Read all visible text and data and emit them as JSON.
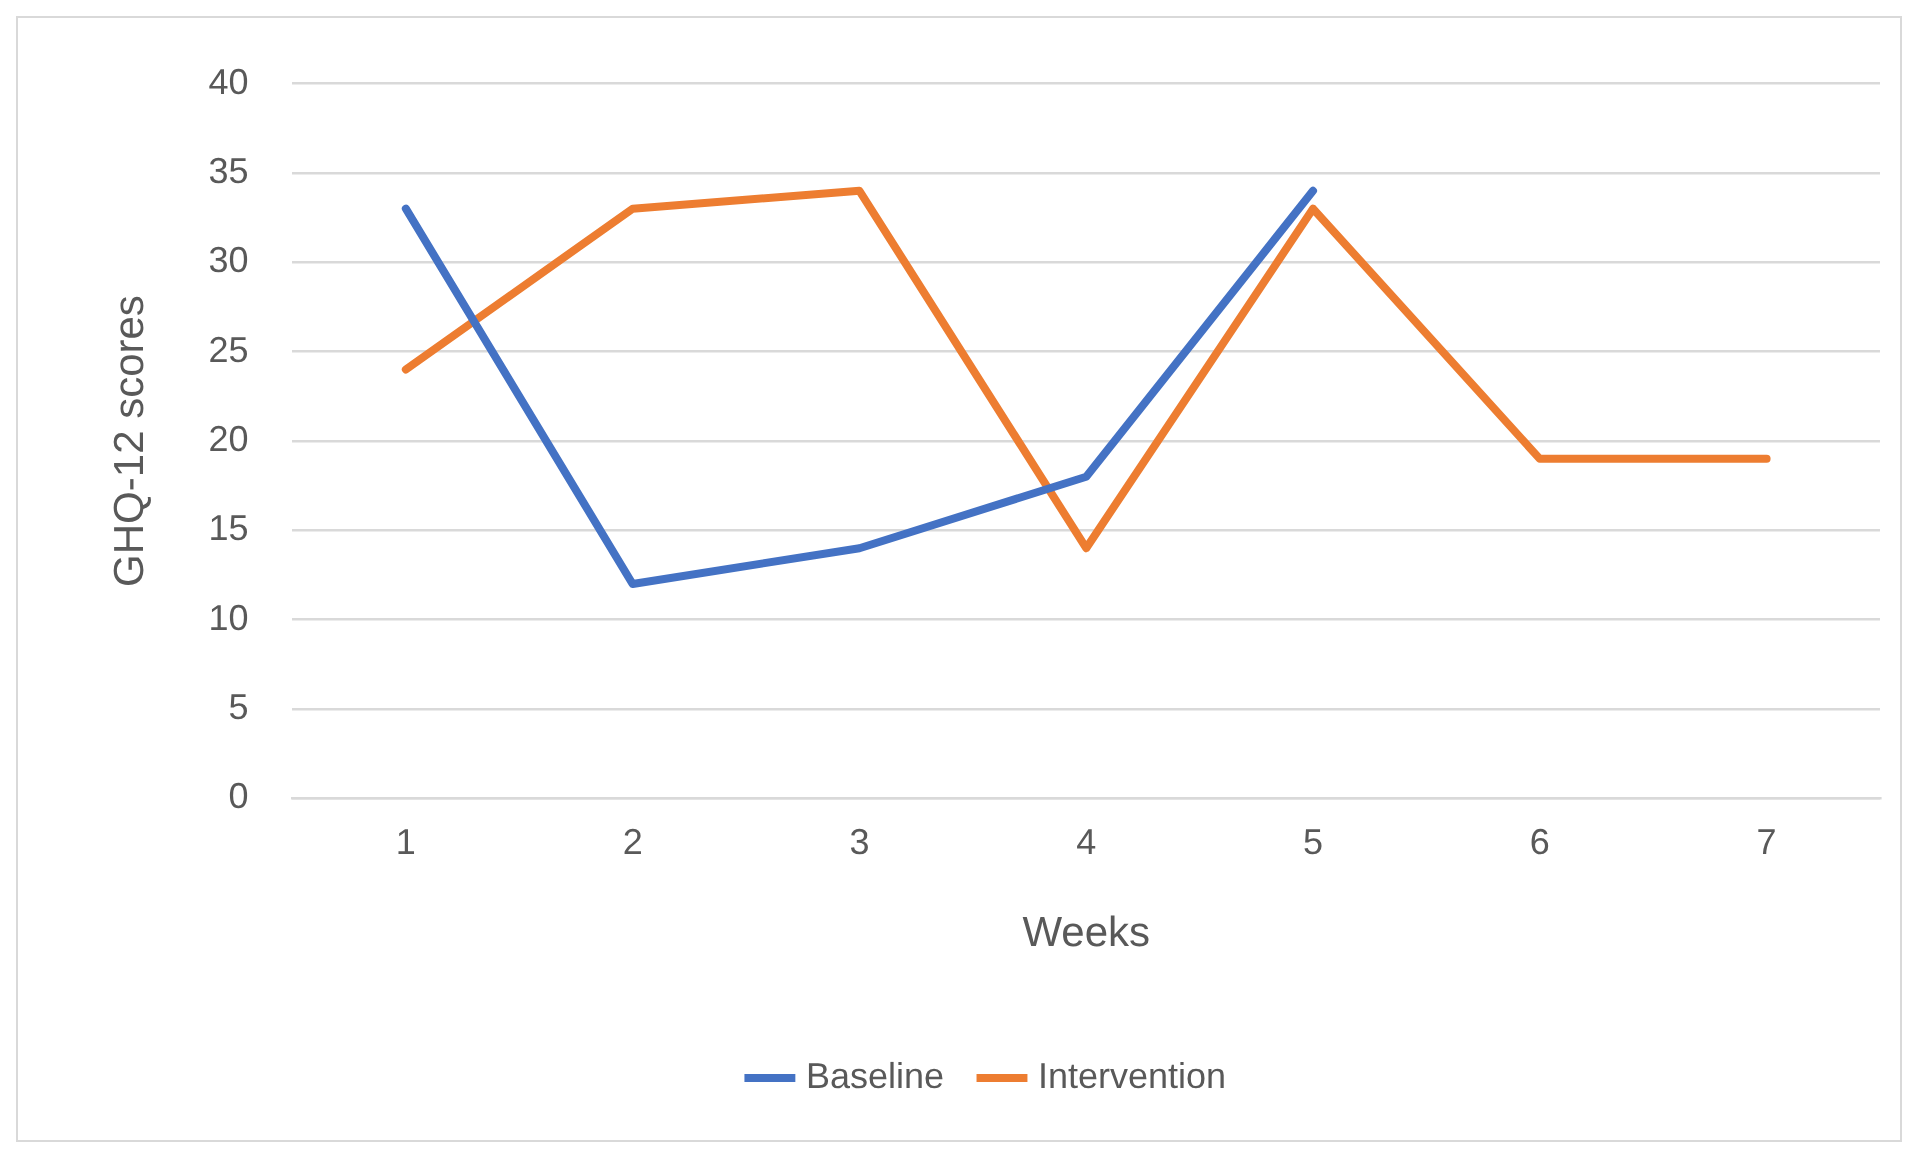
{
  "chart_data": {
    "type": "line",
    "xlabel": "Weeks",
    "ylabel": "GHQ-12 scores",
    "categories": [
      "1",
      "2",
      "3",
      "4",
      "5",
      "6",
      "7"
    ],
    "series": [
      {
        "name": "Baseline",
        "color": "#4472c4",
        "values": [
          33,
          12,
          14,
          18,
          34,
          null,
          null
        ]
      },
      {
        "name": "Intervention",
        "color": "#ed7d31",
        "values": [
          24,
          33,
          34,
          14,
          33,
          19,
          19
        ]
      }
    ],
    "ylim": [
      0,
      40
    ],
    "yticks": [
      0,
      5,
      10,
      15,
      20,
      25,
      30,
      35,
      40
    ],
    "grid": "y",
    "legend": "bottom",
    "marker": "none",
    "line_style": "solid"
  }
}
